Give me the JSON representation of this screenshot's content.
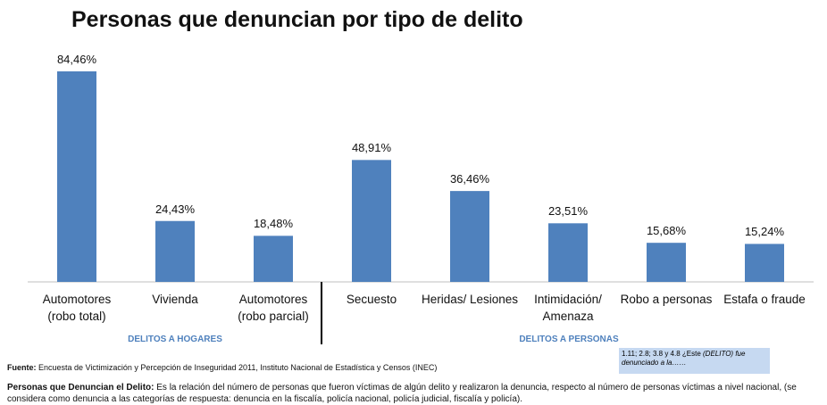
{
  "chart_data": {
    "type": "bar",
    "title": "Personas que denuncian por tipo de delito",
    "categories": [
      "Automotores\n(robo total)",
      "Vivienda",
      "Automotores\n(robo parcial)",
      "Secuesto",
      "Heridas/ Lesiones",
      "Intimidación/\nAmenaza",
      "Robo a personas",
      "Estafa o fraude"
    ],
    "values": [
      84.46,
      24.43,
      18.48,
      48.91,
      36.46,
      23.51,
      15.68,
      15.24
    ],
    "value_labels": [
      "84,46%",
      "24,43%",
      "18,48%",
      "48,91%",
      "36,46%",
      "23,51%",
      "15,68%",
      "15,24%"
    ],
    "color": "#4f81bd",
    "groups": [
      "DELITOS A HOGARES",
      "DELITOS A PERSONAS"
    ]
  },
  "footer": {
    "source_label": "Fuente:",
    "source": "Encuesta de Victimización y Percepción de Inseguridad 2011, Instituto Nacional de Estadística y Censos (INEC)",
    "definition_label": "Personas que Denuncian el Delito:",
    "definition": "Es la relación del número de personas que fueron víctimas de algún delito y realizaron la denuncia, respecto al número de personas víctimas a nivel nacional, (se considera como denuncia a las categorías de respuesta: denuncia en la fiscalía, policía nacional, policía judicial, fiscalía y policía)."
  },
  "note": {
    "plain": "1.11; 2.8; 3.8 y 4.8 ¿Este ",
    "italic": "(DELITO) fue denunciado a la……"
  }
}
